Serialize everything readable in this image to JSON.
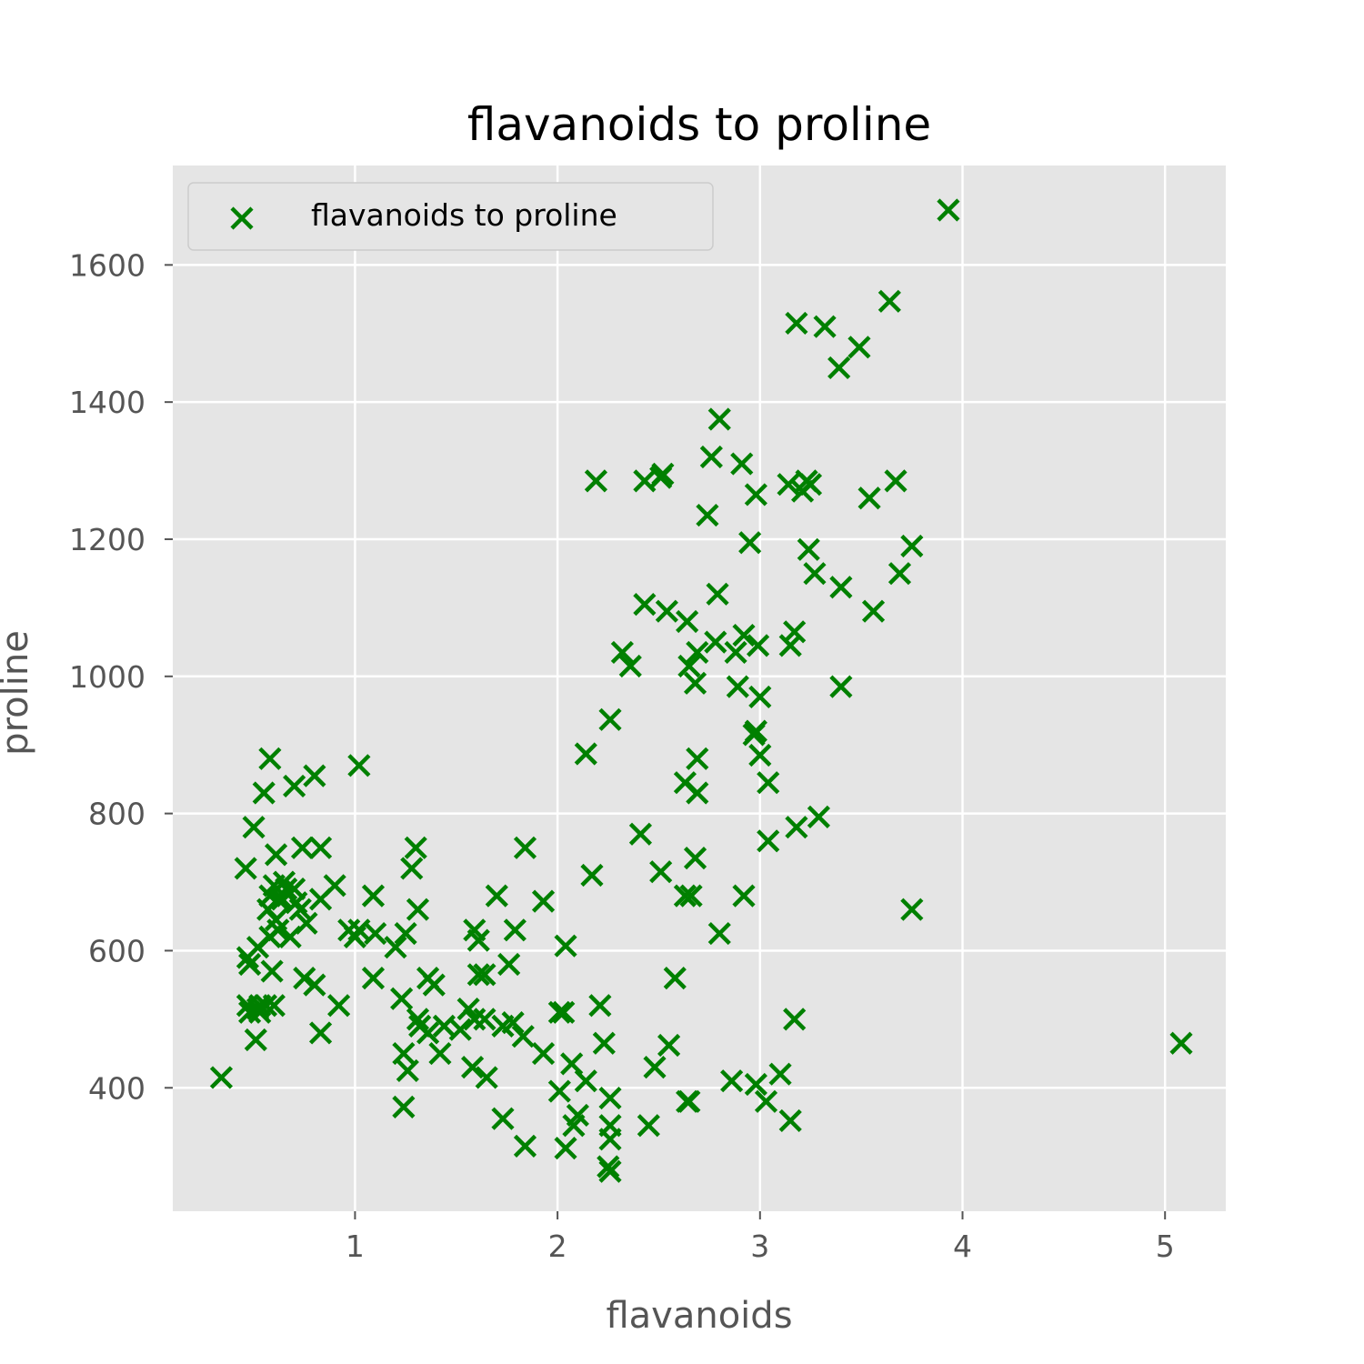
{
  "chart_data": {
    "type": "scatter",
    "title": "flavanoids to proline",
    "xlabel": "flavanoids",
    "ylabel": "proline",
    "xlim": [
      0.1,
      5.3
    ],
    "ylim": [
      220,
      1745
    ],
    "xticks": [
      1,
      2,
      3,
      4,
      5
    ],
    "yticks": [
      400,
      600,
      800,
      1000,
      1200,
      1400,
      1600
    ],
    "grid": true,
    "legend_position": "top-left",
    "marker": "x",
    "series": [
      {
        "name": "flavanoids to proline",
        "color": "#008000",
        "points": [
          [
            3.93,
            1680
          ],
          [
            3.64,
            1547
          ],
          [
            3.18,
            1515
          ],
          [
            3.32,
            1510
          ],
          [
            3.49,
            1480
          ],
          [
            3.39,
            1450
          ],
          [
            2.8,
            1375
          ],
          [
            2.76,
            1320
          ],
          [
            2.91,
            1310
          ],
          [
            2.52,
            1295
          ],
          [
            2.51,
            1290
          ],
          [
            2.98,
            1265
          ],
          [
            2.43,
            1285
          ],
          [
            2.19,
            1285
          ],
          [
            3.14,
            1280
          ],
          [
            3.23,
            1285
          ],
          [
            3.25,
            1280
          ],
          [
            3.21,
            1270
          ],
          [
            3.67,
            1285
          ],
          [
            3.54,
            1260
          ],
          [
            2.74,
            1235
          ],
          [
            2.95,
            1195
          ],
          [
            3.75,
            1190
          ],
          [
            3.24,
            1185
          ],
          [
            3.69,
            1150
          ],
          [
            3.27,
            1150
          ],
          [
            3.4,
            1130
          ],
          [
            2.79,
            1120
          ],
          [
            2.43,
            1105
          ],
          [
            2.54,
            1095
          ],
          [
            3.56,
            1095
          ],
          [
            2.64,
            1080
          ],
          [
            3.17,
            1065
          ],
          [
            2.78,
            1050
          ],
          [
            2.92,
            1060
          ],
          [
            2.88,
            1035
          ],
          [
            2.99,
            1045
          ],
          [
            3.15,
            1045
          ],
          [
            2.69,
            1035
          ],
          [
            2.32,
            1035
          ],
          [
            2.65,
            1015
          ],
          [
            2.36,
            1015
          ],
          [
            2.68,
            990
          ],
          [
            3.4,
            985
          ],
          [
            2.89,
            985
          ],
          [
            3.0,
            970
          ],
          [
            2.26,
            937
          ],
          [
            2.98,
            920
          ],
          [
            2.97,
            915
          ],
          [
            3.0,
            885
          ],
          [
            2.14,
            887
          ],
          [
            2.69,
            880
          ],
          [
            1.02,
            870
          ],
          [
            2.63,
            845
          ],
          [
            3.04,
            845
          ],
          [
            2.69,
            830
          ],
          [
            0.58,
            880
          ],
          [
            0.8,
            855
          ],
          [
            0.55,
            830
          ],
          [
            0.7,
            840
          ],
          [
            3.29,
            795
          ],
          [
            3.18,
            780
          ],
          [
            0.5,
            780
          ],
          [
            2.41,
            770
          ],
          [
            3.04,
            760
          ],
          [
            1.84,
            750
          ],
          [
            1.3,
            750
          ],
          [
            0.74,
            750
          ],
          [
            0.83,
            750
          ],
          [
            0.61,
            740
          ],
          [
            2.68,
            735
          ],
          [
            0.46,
            720
          ],
          [
            1.28,
            720
          ],
          [
            2.51,
            715
          ],
          [
            2.17,
            710
          ],
          [
            0.65,
            700
          ],
          [
            0.66,
            690
          ],
          [
            0.9,
            695
          ],
          [
            0.6,
            695
          ],
          [
            0.64,
            675
          ],
          [
            0.7,
            690
          ],
          [
            1.09,
            680
          ],
          [
            0.58,
            680
          ],
          [
            1.7,
            680
          ],
          [
            2.63,
            680
          ],
          [
            2.66,
            680
          ],
          [
            2.92,
            680
          ],
          [
            0.71,
            670
          ],
          [
            0.62,
            675
          ],
          [
            0.83,
            675
          ],
          [
            1.93,
            672
          ],
          [
            1.31,
            660
          ],
          [
            0.57,
            660
          ],
          [
            0.73,
            660
          ],
          [
            3.75,
            660
          ],
          [
            0.76,
            640
          ],
          [
            0.62,
            630
          ],
          [
            0.58,
            620
          ],
          [
            1.59,
            630
          ],
          [
            1.79,
            630
          ],
          [
            0.97,
            630
          ],
          [
            1.1,
            625
          ],
          [
            1.25,
            625
          ],
          [
            0.68,
            620
          ],
          [
            1.0,
            620
          ],
          [
            2.8,
            625
          ],
          [
            1.61,
            615
          ],
          [
            2.04,
            607
          ],
          [
            1.2,
            605
          ],
          [
            0.52,
            605
          ],
          [
            0.47,
            590
          ],
          [
            1.76,
            580
          ],
          [
            0.48,
            580
          ],
          [
            0.59,
            570
          ],
          [
            1.64,
            565
          ],
          [
            1.61,
            565
          ],
          [
            1.36,
            560
          ],
          [
            1.09,
            560
          ],
          [
            0.75,
            560
          ],
          [
            1.39,
            550
          ],
          [
            0.8,
            550
          ],
          [
            2.58,
            560
          ],
          [
            0.47,
            520
          ],
          [
            0.53,
            520
          ],
          [
            0.52,
            515
          ],
          [
            0.56,
            520
          ],
          [
            0.6,
            520
          ],
          [
            0.92,
            520
          ],
          [
            0.48,
            510
          ],
          [
            0.53,
            510
          ],
          [
            1.23,
            530
          ],
          [
            1.56,
            515
          ],
          [
            1.31,
            500
          ],
          [
            1.59,
            500
          ],
          [
            2.01,
            510
          ],
          [
            2.03,
            510
          ],
          [
            2.21,
            520
          ],
          [
            1.64,
            500
          ],
          [
            1.73,
            490
          ],
          [
            1.44,
            490
          ],
          [
            1.78,
            495
          ],
          [
            1.52,
            485
          ],
          [
            1.36,
            480
          ],
          [
            0.51,
            470
          ],
          [
            0.83,
            480
          ],
          [
            1.83,
            475
          ],
          [
            1.42,
            450
          ],
          [
            2.23,
            465
          ],
          [
            2.55,
            462
          ],
          [
            1.24,
            450
          ],
          [
            1.93,
            450
          ],
          [
            2.07,
            435
          ],
          [
            5.08,
            465
          ],
          [
            3.17,
            500
          ],
          [
            1.26,
            425
          ],
          [
            1.58,
            430
          ],
          [
            1.65,
            415
          ],
          [
            2.48,
            430
          ],
          [
            2.14,
            410
          ],
          [
            2.01,
            395
          ],
          [
            2.86,
            410
          ],
          [
            2.98,
            405
          ],
          [
            3.03,
            380
          ],
          [
            3.1,
            420
          ],
          [
            0.34,
            415
          ],
          [
            2.26,
            385
          ],
          [
            1.24,
            372
          ],
          [
            2.65,
            380
          ],
          [
            2.64,
            380
          ],
          [
            1.73,
            355
          ],
          [
            2.1,
            360
          ],
          [
            2.26,
            345
          ],
          [
            2.45,
            345
          ],
          [
            2.08,
            345
          ],
          [
            3.15,
            352
          ],
          [
            2.26,
            325
          ],
          [
            1.84,
            315
          ],
          [
            2.04,
            312
          ],
          [
            2.25,
            285
          ],
          [
            2.26,
            278
          ],
          [
            1.02,
            630
          ],
          [
            0.61,
            645
          ],
          [
            1.32,
            490
          ]
        ]
      }
    ]
  }
}
